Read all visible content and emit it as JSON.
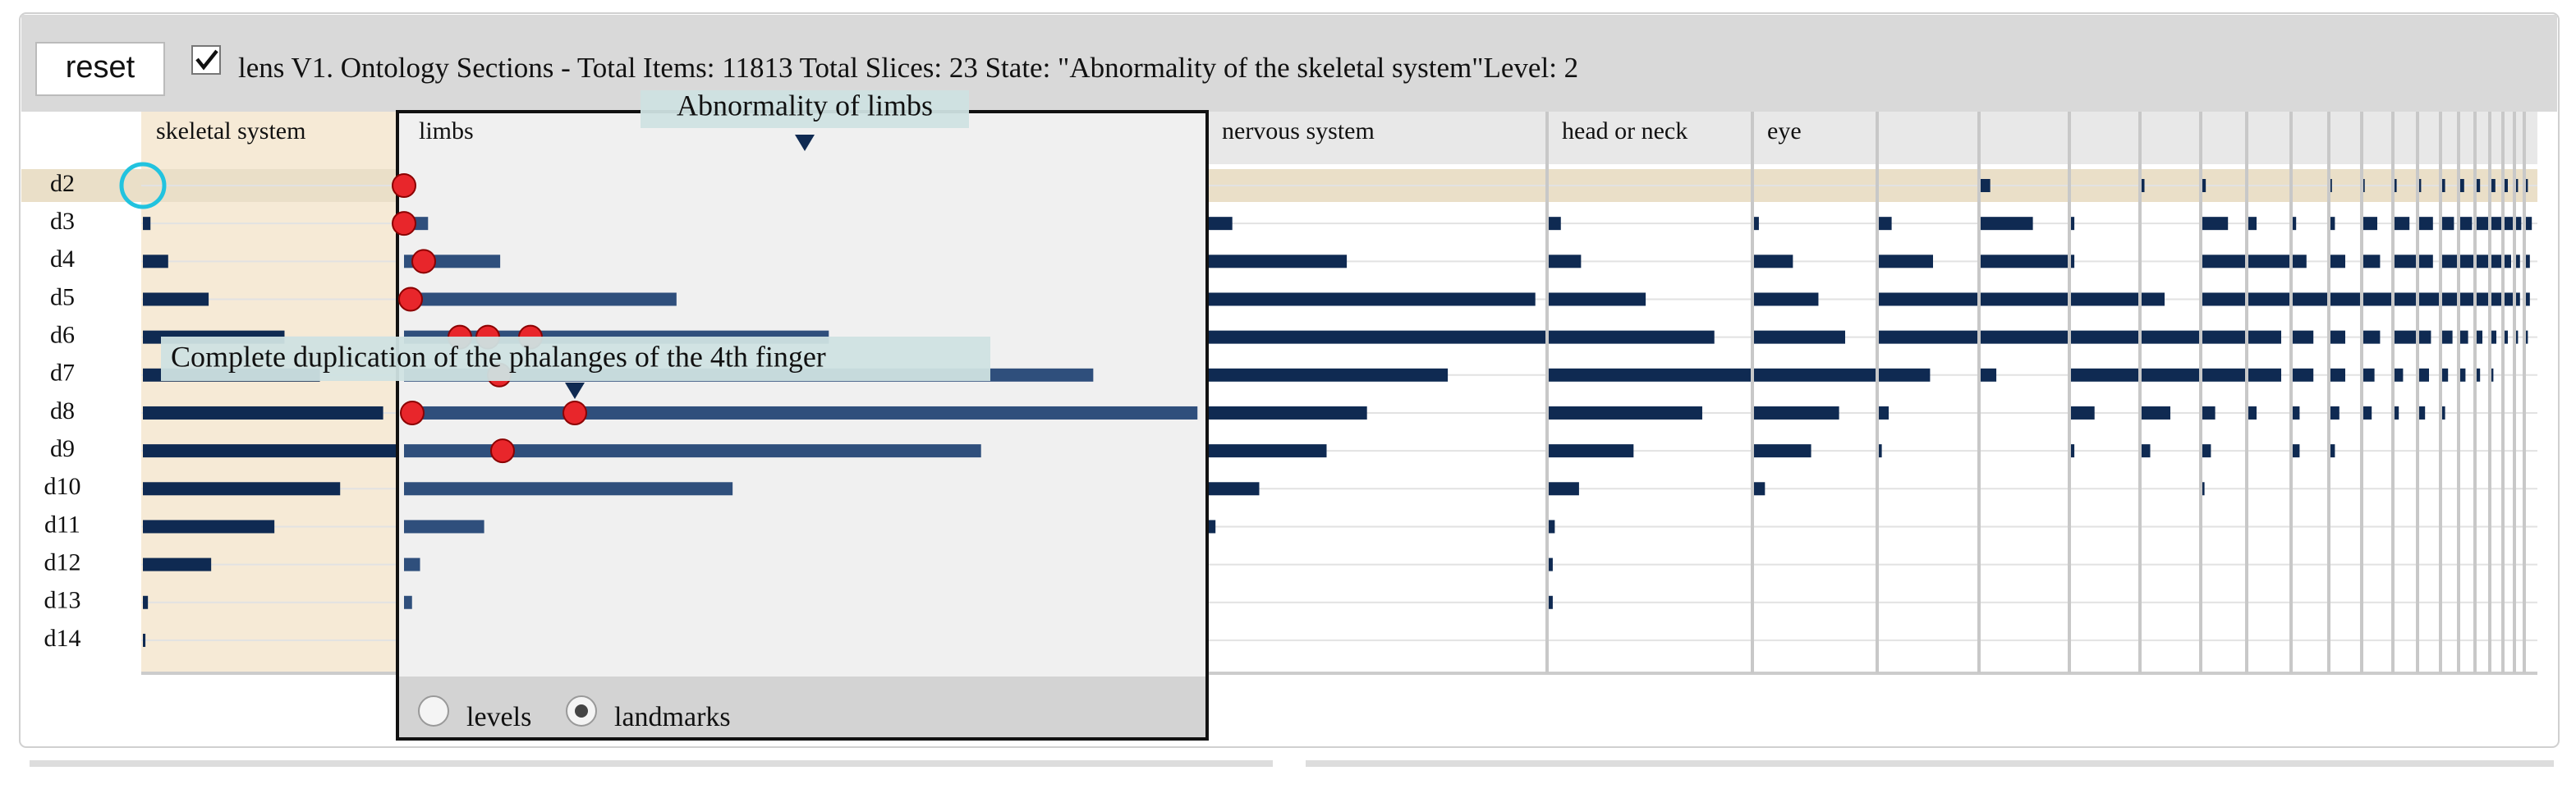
{
  "header": {
    "button": "reset",
    "title": "lens V1. Ontology Sections - Total Items: 11813 Total Slices: 23 State: \"Abnormality of the skeletal system\"Level: 2"
  },
  "rows": [
    "d2",
    "d3",
    "d4",
    "d5",
    "d6",
    "d7",
    "d8",
    "d9",
    "d10",
    "d11",
    "d12",
    "d13",
    "d14"
  ],
  "sections": [
    {
      "name": "skeletal system",
      "values": [
        0,
        3,
        10,
        26,
        56,
        70,
        95,
        100,
        78,
        52,
        27,
        2,
        1
      ]
    },
    {
      "name": "limbs",
      "values": [
        0,
        3,
        12,
        34,
        53,
        86,
        99,
        72,
        41,
        10,
        2,
        1,
        0
      ]
    },
    {
      "name": "nervous system",
      "values": [
        0,
        7,
        41,
        97,
        100,
        71,
        47,
        35,
        15,
        2,
        0,
        0,
        0
      ]
    },
    {
      "name": "head or neck",
      "values": [
        0,
        6,
        16,
        48,
        82,
        100,
        76,
        42,
        15,
        3,
        2,
        2,
        0
      ]
    },
    {
      "name": "eye",
      "values": [
        0,
        4,
        32,
        53,
        75,
        100,
        70,
        47,
        9,
        0,
        0,
        0,
        0
      ]
    },
    {
      "values": [
        0,
        13,
        55,
        100,
        100,
        52,
        10,
        3,
        0,
        0,
        0,
        0,
        0
      ]
    },
    {
      "values": [
        11,
        60,
        100,
        100,
        100,
        18,
        0,
        0,
        0,
        0,
        0,
        0,
        0
      ]
    },
    {
      "values": [
        0,
        5,
        5,
        100,
        100,
        100,
        35,
        5,
        0,
        0,
        0,
        0,
        0
      ]
    },
    {
      "values": [
        5,
        0,
        0,
        40,
        100,
        100,
        50,
        15,
        0,
        0,
        0,
        0,
        0
      ]
    },
    {
      "values": [
        8,
        60,
        100,
        100,
        100,
        100,
        30,
        20,
        5,
        0,
        0,
        0,
        0
      ]
    },
    {
      "values": [
        0,
        20,
        100,
        100,
        80,
        80,
        20,
        0,
        0,
        0,
        0,
        0,
        0
      ]
    },
    {
      "values": [
        0,
        10,
        40,
        100,
        60,
        60,
        20,
        20,
        0,
        0,
        0,
        0,
        0
      ]
    },
    {
      "values": [
        5,
        15,
        50,
        100,
        50,
        50,
        30,
        15,
        0,
        0,
        0,
        0,
        0
      ]
    },
    {
      "values": [
        5,
        50,
        60,
        100,
        60,
        40,
        30,
        0,
        0,
        0,
        0,
        0,
        0
      ]
    },
    {
      "values": [
        10,
        70,
        100,
        100,
        100,
        40,
        20,
        0,
        0,
        0,
        0,
        0,
        0
      ]
    },
    {
      "values": [
        10,
        70,
        70,
        100,
        60,
        50,
        30,
        0,
        0,
        0,
        0,
        0,
        0
      ]
    },
    {
      "values": [
        20,
        80,
        100,
        100,
        70,
        40,
        20,
        0,
        0,
        0,
        0,
        0,
        0
      ]
    },
    {
      "values": [
        30,
        90,
        100,
        100,
        60,
        40,
        0,
        0,
        0,
        0,
        0,
        0,
        0
      ]
    },
    {
      "values": [
        30,
        100,
        100,
        100,
        50,
        30,
        0,
        0,
        0,
        0,
        0,
        0,
        0
      ]
    },
    {
      "values": [
        40,
        100,
        100,
        100,
        50,
        20,
        0,
        0,
        0,
        0,
        0,
        0,
        0
      ]
    },
    {
      "values": [
        40,
        100,
        80,
        100,
        40,
        0,
        0,
        0,
        0,
        0,
        0,
        0,
        0
      ]
    },
    {
      "values": [
        30,
        80,
        60,
        60,
        30,
        0,
        0,
        0,
        0,
        0,
        0,
        0,
        0
      ]
    },
    {
      "values": [
        20,
        60,
        40,
        40,
        20,
        0,
        0,
        0,
        0,
        0,
        0,
        0,
        0
      ]
    }
  ],
  "lens": {
    "title": "Abnormality of limbs",
    "options": [
      "levels",
      "landmarks"
    ]
  },
  "tooltip": "Complete duplication of the phalanges of the 4th finger"
}
